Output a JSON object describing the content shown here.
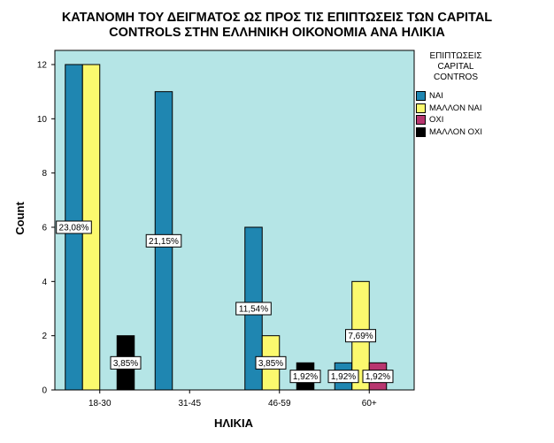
{
  "title": {
    "line1": "ΚΑΤΑΝΟΜΗ ΤΟΥ ΔΕΙΓΜΑΤΟΣ ΩΣ ΠΡΟΣ ΤΙΣ ΕΠΙΠΤΩΣΕΙΣ ΤΩΝ CAPITAL",
    "line2": "CONTROLS ΣΤΗΝ ΕΛΛΗΝΙΚΗ ΟΙΚΟΝΟΜΙΑ ΑΝΑ ΗΛΙΚΙΑ"
  },
  "legend": {
    "title_lines": [
      "ΕΠΙΠΤΩΣΕΙΣ",
      "CAPITAL",
      "CONTROS"
    ],
    "items": [
      {
        "label": "ΝΑΙ",
        "color": "#1f86b1"
      },
      {
        "label": "ΜΑΛΛΟΝ ΝΑΙ",
        "color": "#fbf96e"
      },
      {
        "label": "ΟΧΙ",
        "color": "#b8366f"
      },
      {
        "label": "ΜΑΛΛΟΝ ΟΧΙ",
        "color": "#000000"
      }
    ]
  },
  "chart_data": {
    "type": "bar",
    "xlabel": "ΗΛΙΚΙΑ",
    "ylabel": "Count",
    "ylim": [
      0,
      12
    ],
    "yticks": [
      0,
      2,
      4,
      6,
      8,
      10,
      12
    ],
    "categories": [
      "18-30",
      "31-45",
      "46-59",
      "60+"
    ],
    "background": "#b5e5e6",
    "series": [
      {
        "name": "ΝΑΙ",
        "color": "#1f86b1",
        "values": [
          12,
          11,
          6,
          1
        ],
        "labels": [
          "23,08%",
          "21,15%",
          "11,54%",
          "1,92%"
        ]
      },
      {
        "name": "ΜΑΛΛΟΝ ΝΑΙ",
        "color": "#fbf96e",
        "values": [
          12,
          0,
          2,
          4
        ],
        "labels": [
          "",
          "",
          "3,85%",
          "7,69%"
        ]
      },
      {
        "name": "ΟΧΙ",
        "color": "#b8366f",
        "values": [
          0,
          0,
          0,
          1
        ],
        "labels": [
          "",
          "",
          "",
          "1,92%"
        ]
      },
      {
        "name": "ΜΑΛΛΟΝ ΟΧΙ",
        "color": "#000000",
        "values": [
          2,
          0,
          1,
          0
        ],
        "labels": [
          "3,85%",
          "",
          "1,92%",
          ""
        ]
      }
    ]
  }
}
